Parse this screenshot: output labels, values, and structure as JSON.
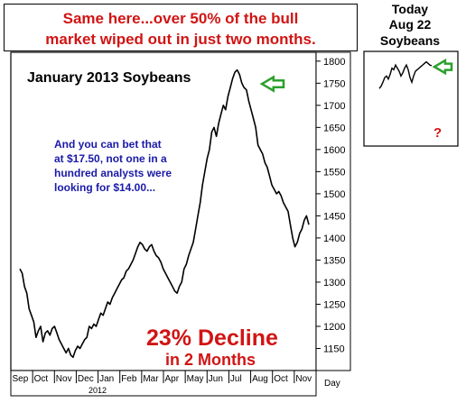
{
  "banner": {
    "line1": "Same here...over 50% of the bull",
    "line2": "market wiped out in just two months."
  },
  "side_panel": {
    "line1": "Today",
    "line2": "Aug 22",
    "line3": "Soybeans",
    "question_mark": "?"
  },
  "colors": {
    "headline_red": "#d11414",
    "note_blue": "#1a1aa8",
    "arrow_green": "#2ca02c",
    "price_line": "#000000"
  },
  "chart_data": [
    {
      "type": "line",
      "title": "January 2013 Soybeans",
      "xlabel": "",
      "ylabel": "",
      "x_tick_labels": [
        "Sep",
        "Oct",
        "Nov",
        "Dec",
        "Jan",
        "Feb",
        "Mar",
        "Apr",
        "May",
        "Jun",
        "Jul",
        "Aug",
        "Oct",
        "Nov"
      ],
      "x_year_label": "2012",
      "x_unit_label": "Day",
      "y_ticks": [
        1150,
        1200,
        1250,
        1300,
        1350,
        1400,
        1450,
        1500,
        1550,
        1600,
        1650,
        1700,
        1750,
        1800
      ],
      "ylim": [
        1100,
        1820
      ],
      "grid": false,
      "annotations": {
        "note_lines": [
          "And you can bet that",
          "at $17.50, not one in a",
          "hundred analysts were",
          "looking for $14.00..."
        ],
        "decline_line1": "23% Decline",
        "decline_line2": "in 2 Months"
      },
      "arrow_at_value": 1720,
      "series": [
        {
          "values": [
            1330,
            1320,
            1290,
            1275,
            1240,
            1225,
            1210,
            1175,
            1190,
            1200,
            1165,
            1185,
            1190,
            1180,
            1195,
            1200,
            1185,
            1170,
            1160,
            1150,
            1140,
            1150,
            1135,
            1130,
            1145,
            1155,
            1150,
            1160,
            1170,
            1175,
            1200,
            1195,
            1205,
            1200,
            1215,
            1230,
            1225,
            1240,
            1255,
            1250,
            1265,
            1275,
            1285,
            1295,
            1305,
            1310,
            1325,
            1330,
            1340,
            1350,
            1365,
            1380,
            1390,
            1385,
            1375,
            1370,
            1380,
            1385,
            1370,
            1360,
            1355,
            1345,
            1330,
            1320,
            1310,
            1300,
            1290,
            1280,
            1275,
            1290,
            1300,
            1330,
            1340,
            1360,
            1375,
            1390,
            1420,
            1450,
            1480,
            1520,
            1550,
            1580,
            1600,
            1640,
            1650,
            1630,
            1660,
            1680,
            1700,
            1690,
            1720,
            1740,
            1760,
            1775,
            1780,
            1770,
            1750,
            1740,
            1735,
            1710,
            1690,
            1670,
            1650,
            1610,
            1600,
            1590,
            1570,
            1560,
            1540,
            1520,
            1510,
            1500,
            1505,
            1495,
            1480,
            1470,
            1460,
            1430,
            1400,
            1380,
            1390,
            1410,
            1420,
            1440,
            1450,
            1430
          ]
        }
      ]
    },
    {
      "type": "line",
      "title": "",
      "grid": false,
      "arrow_at_value": 1720,
      "series": [
        {
          "values": [
            1570,
            1585,
            1610,
            1640,
            1650,
            1630,
            1660,
            1700,
            1690,
            1720,
            1700,
            1680,
            1650,
            1670,
            1700,
            1720,
            1690,
            1640,
            1610,
            1650,
            1680,
            1690,
            1700,
            1710,
            1720,
            1730,
            1740,
            1730,
            1720,
            1715
          ]
        }
      ]
    }
  ]
}
